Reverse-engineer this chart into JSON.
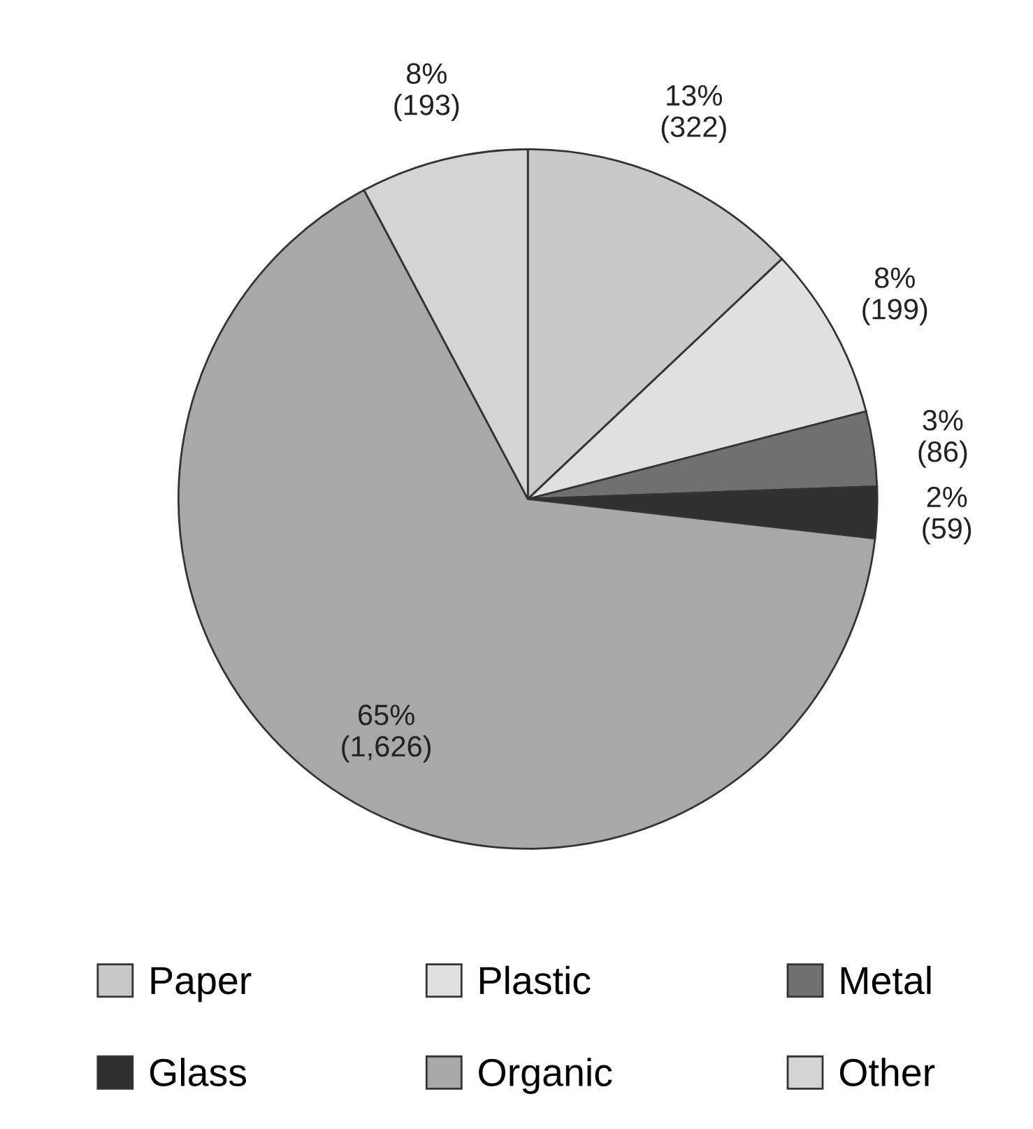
{
  "chart_data": {
    "type": "pie",
    "categories": [
      "Paper",
      "Plastic",
      "Metal",
      "Glass",
      "Organic",
      "Other"
    ],
    "values": [
      322,
      199,
      86,
      59,
      1626,
      193
    ],
    "colors": [
      "#c8c8c8",
      "#e0e0e0",
      "#707070",
      "#303030",
      "#a8a8a8",
      "#d4d4d4"
    ],
    "value_labels": [
      "13%\n(322)",
      "8%\n(199)",
      "3%\n(86)",
      "2%\n(59)",
      "65%\n(1,626)",
      "8%\n(193)"
    ],
    "legend": "bottom"
  }
}
